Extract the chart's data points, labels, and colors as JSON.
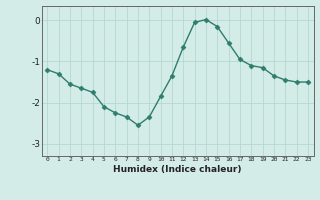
{
  "x": [
    0,
    1,
    2,
    3,
    4,
    5,
    6,
    7,
    8,
    9,
    10,
    11,
    12,
    13,
    14,
    15,
    16,
    17,
    18,
    19,
    20,
    21,
    22,
    23
  ],
  "y": [
    -1.2,
    -1.3,
    -1.55,
    -1.65,
    -1.75,
    -2.1,
    -2.25,
    -2.35,
    -2.55,
    -2.35,
    -1.85,
    -1.35,
    -0.65,
    -0.05,
    0.02,
    -0.15,
    -0.55,
    -0.95,
    -1.1,
    -1.15,
    -1.35,
    -1.45,
    -1.5,
    -1.5
  ],
  "xlabel": "Humidex (Indice chaleur)",
  "line_color": "#2e7d6e",
  "marker": "D",
  "marker_size": 2.5,
  "bg_color": "#d4ece8",
  "grid_color": "#b0d4ce",
  "axis_color": "#666666",
  "ylim": [
    -3.3,
    0.35
  ],
  "xlim": [
    -0.5,
    23.5
  ],
  "yticks": [
    0,
    -1,
    -2,
    -3
  ],
  "xticks": [
    0,
    1,
    2,
    3,
    4,
    5,
    6,
    7,
    8,
    9,
    10,
    11,
    12,
    13,
    14,
    15,
    16,
    17,
    18,
    19,
    20,
    21,
    22,
    23
  ]
}
